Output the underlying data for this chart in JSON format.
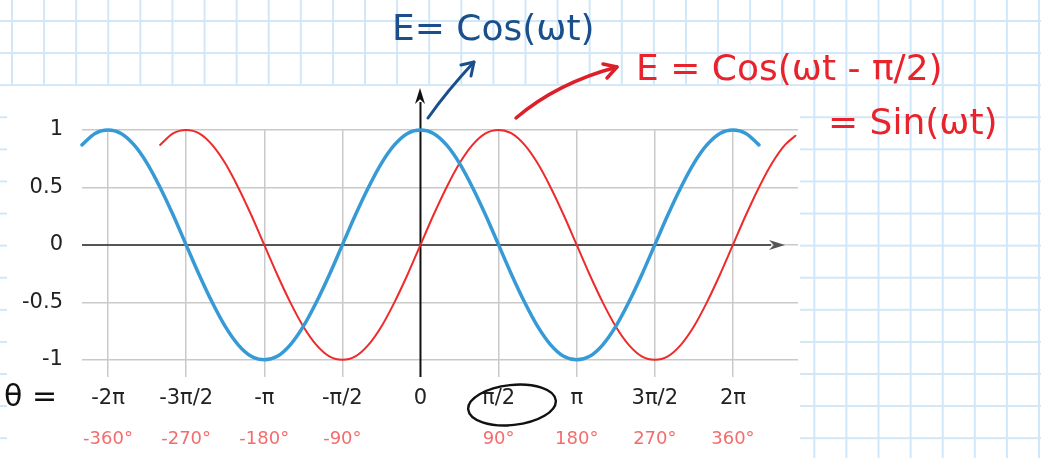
{
  "chart_data": {
    "type": "line",
    "xlabel": "θ =",
    "annotations": [
      "E= Cos(ωt)",
      "E = Cos(ωt - π/2)",
      "= Sin(ωt)"
    ],
    "xlim": [
      -390,
      435
    ],
    "xticks": [
      {
        "value": -360,
        "label": "-360°"
      },
      {
        "value": -270,
        "label": "-270°"
      },
      {
        "value": -180,
        "label": "-180°"
      },
      {
        "value": -90,
        "label": "-90°"
      },
      {
        "value": 90,
        "label": "90°"
      },
      {
        "value": 180,
        "label": "180°"
      },
      {
        "value": 270,
        "label": "270°"
      },
      {
        "value": 360,
        "label": "360°"
      }
    ],
    "x2lim": [
      -6.807,
      7.592
    ],
    "x2ticks": [
      {
        "value": -6.283,
        "label": "-2π"
      },
      {
        "value": -4.712,
        "label": "-3π/2"
      },
      {
        "value": -3.142,
        "label": "-π"
      },
      {
        "value": -1.571,
        "label": "-π/2"
      },
      0,
      {
        "value": 1.571,
        "label": "π/2"
      },
      {
        "value": 3.142,
        "label": "π"
      },
      {
        "value": 4.712,
        "label": "3π/2"
      },
      {
        "value": 6.283,
        "label": "2π"
      }
    ],
    "ylim": [
      -1.15,
      1
    ],
    "yticks": [
      -1,
      -0.5,
      0,
      0.5,
      1
    ],
    "grid": true,
    "marker": "none",
    "line_style": "solid",
    "ref_lines": [
      {
        "axis": "y",
        "value": 0,
        "color": "#555555"
      },
      {
        "axis": "x",
        "value": 0,
        "color": "#111111"
      }
    ],
    "series": [
      {
        "color": "#359ad5",
        "x": [
          -390,
          -375,
          -360,
          -345,
          -330,
          -315,
          -300,
          -285,
          -270,
          -255,
          -240,
          -225,
          -210,
          -195,
          -180,
          -165,
          -150,
          -135,
          -120,
          -105,
          -90,
          -75,
          -60,
          -45,
          -30,
          -15,
          0,
          15,
          30,
          45,
          60,
          75,
          90,
          105,
          120,
          135,
          150,
          165,
          180,
          195,
          210,
          225,
          240,
          255,
          270,
          285,
          300,
          315,
          330,
          345,
          360,
          375,
          390
        ],
        "values": [
          0.87,
          0.97,
          1,
          0.97,
          0.87,
          0.71,
          0.5,
          0.26,
          0,
          -0.26,
          -0.5,
          -0.71,
          -0.87,
          -0.97,
          -1,
          -0.97,
          -0.87,
          -0.71,
          -0.5,
          -0.26,
          0,
          0.26,
          0.5,
          0.71,
          0.87,
          0.97,
          1,
          0.97,
          0.87,
          0.71,
          0.5,
          0.26,
          0,
          -0.26,
          -0.5,
          -0.71,
          -0.87,
          -0.97,
          -1,
          -0.97,
          -0.87,
          -0.71,
          -0.5,
          -0.26,
          0,
          0.26,
          0.5,
          0.71,
          0.87,
          0.97,
          1,
          0.97,
          0.87
        ]
      },
      {
        "color": "#ee2a2a",
        "x": [
          -300,
          -285,
          -270,
          -255,
          -240,
          -225,
          -210,
          -195,
          -180,
          -165,
          -150,
          -135,
          -120,
          -105,
          -90,
          -75,
          -60,
          -45,
          -30,
          -15,
          0,
          15,
          30,
          45,
          60,
          75,
          90,
          105,
          120,
          135,
          150,
          165,
          180,
          195,
          210,
          225,
          240,
          255,
          270,
          285,
          300,
          315,
          330,
          345,
          360,
          375,
          390,
          405,
          420,
          432
        ],
        "values": [
          0.87,
          0.97,
          1,
          0.97,
          0.87,
          0.71,
          0.5,
          0.26,
          0,
          -0.26,
          -0.5,
          -0.71,
          -0.87,
          -0.97,
          -1,
          -0.97,
          -0.87,
          -0.71,
          -0.5,
          -0.26,
          0,
          0.26,
          0.5,
          0.71,
          0.87,
          0.97,
          1,
          0.97,
          0.87,
          0.71,
          0.5,
          0.26,
          0,
          -0.26,
          -0.5,
          -0.71,
          -0.87,
          -0.97,
          -1,
          -0.97,
          -0.87,
          -0.71,
          -0.5,
          -0.26,
          0,
          0.26,
          0.5,
          0.71,
          0.87,
          0.95
        ]
      }
    ]
  }
}
